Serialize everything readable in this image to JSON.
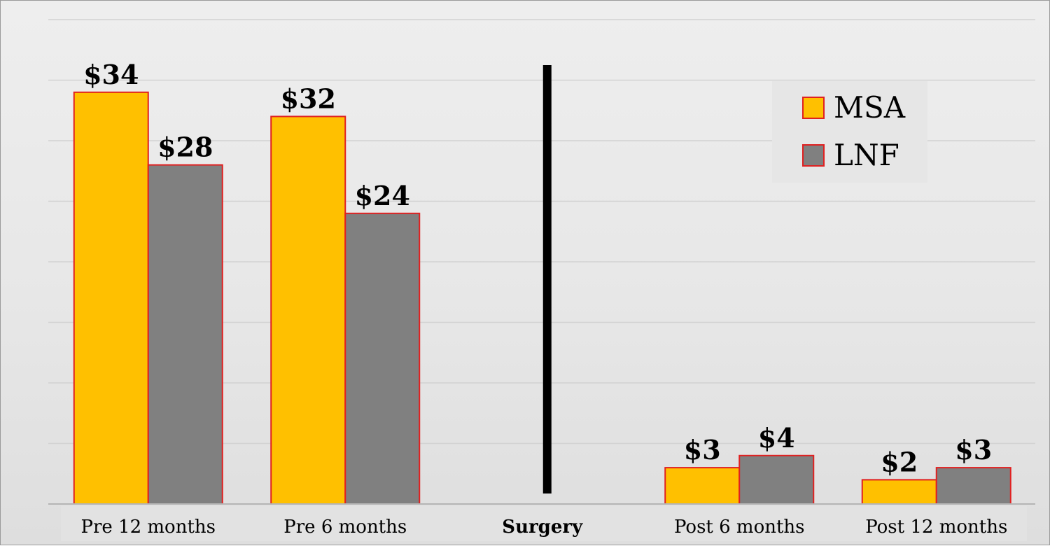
{
  "chart_data": {
    "type": "bar",
    "categories": [
      "Pre 12 months",
      "Pre 6 months",
      "Surgery",
      "Post 6 months",
      "Post 12 months"
    ],
    "series": [
      {
        "name": "MSA",
        "color": "#ffc000",
        "values": [
          34,
          32,
          null,
          3,
          2
        ],
        "labels": [
          "$34",
          "$32",
          "",
          "$3",
          "$2"
        ]
      },
      {
        "name": "LNF",
        "color": "#808080",
        "values": [
          28,
          24,
          null,
          4,
          3
        ],
        "labels": [
          "$28",
          "$24",
          "",
          "$4",
          "$3"
        ]
      }
    ],
    "bar_border_color": "#e02020",
    "divider_at_category": "Surgery",
    "bold_categories": [
      "Surgery"
    ],
    "ylim": [
      0,
      40
    ],
    "grid": true,
    "legend_position": "top-right",
    "title": "",
    "xlabel": "",
    "ylabel": ""
  }
}
